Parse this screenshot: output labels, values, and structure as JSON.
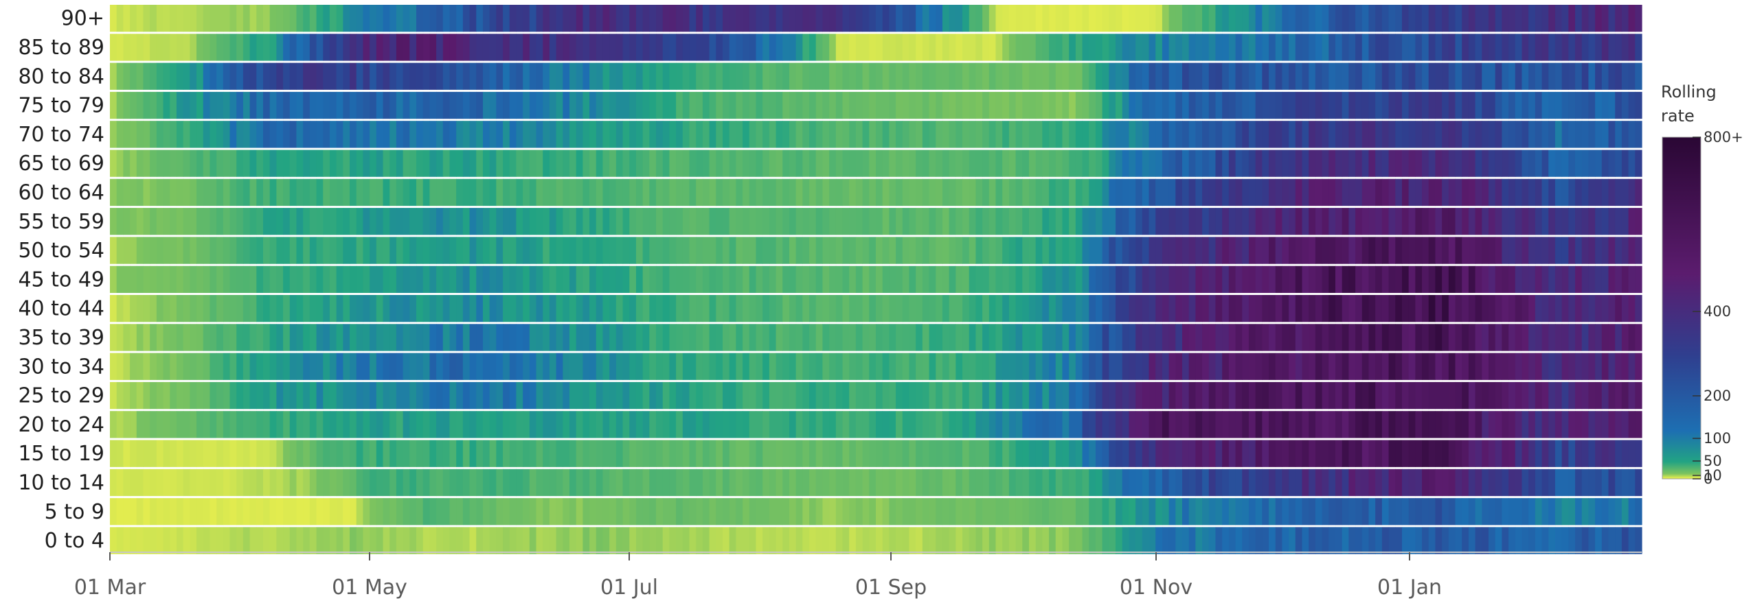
{
  "chart_data": {
    "type": "heatmap",
    "title": "",
    "xlabel": "",
    "ylabel": "",
    "rows": [
      "90+",
      "85 to 89",
      "80 to 84",
      "75 to 79",
      "70 to 74",
      "65 to 69",
      "60 to 64",
      "55 to 59",
      "50 to 54",
      "45 to 49",
      "40 to 44",
      "35 to 39",
      "30 to 34",
      "25 to 29",
      "20 to 24",
      "15 to 19",
      "10 to 14",
      "5 to 9",
      "0 to 4"
    ],
    "x_ticks": [
      "01 Mar",
      "01 May",
      "01 Jul",
      "01 Sep",
      "01 Nov",
      "01 Jan"
    ],
    "color_scale": {
      "title_lines": [
        "Rolling",
        "rate"
      ],
      "ticks": [
        "800+",
        "400",
        "200",
        "100",
        "50",
        "10",
        "0"
      ],
      "tick_values": [
        800,
        400,
        200,
        100,
        50,
        10,
        0
      ],
      "colors": [
        "#f4f34c",
        "#7cc35f",
        "#22a383",
        "#1d6fb2",
        "#2f3f8f",
        "#5b1c6e",
        "#2a0734"
      ]
    },
    "values_by_row": {
      "90+": [
        [
          0,
          3
        ],
        [
          10,
          5
        ],
        [
          40,
          8
        ],
        [
          70,
          95
        ],
        [
          90,
          160
        ],
        [
          120,
          300
        ],
        [
          180,
          250
        ],
        [
          220,
          2
        ],
        [
          260,
          2
        ],
        [
          300,
          130
        ],
        [
          320,
          190
        ],
        [
          360,
          300
        ],
        [
          420,
          380
        ],
        [
          450,
          320
        ]
      ],
      "85 to 89": [
        [
          0,
          3
        ],
        [
          20,
          5
        ],
        [
          40,
          60
        ],
        [
          70,
          380
        ],
        [
          110,
          300
        ],
        [
          150,
          200
        ],
        [
          180,
          3
        ],
        [
          220,
          3
        ],
        [
          250,
          70
        ],
        [
          300,
          120
        ],
        [
          330,
          200
        ],
        [
          360,
          250
        ],
        [
          400,
          280
        ],
        [
          450,
          220
        ]
      ],
      "80 to 84": [
        [
          0,
          3
        ],
        [
          20,
          60
        ],
        [
          50,
          250
        ],
        [
          90,
          140
        ],
        [
          140,
          40
        ],
        [
          180,
          20
        ],
        [
          210,
          20
        ],
        [
          240,
          15
        ],
        [
          260,
          150
        ],
        [
          300,
          150
        ],
        [
          330,
          180
        ],
        [
          360,
          150
        ],
        [
          400,
          220
        ],
        [
          450,
          150
        ]
      ],
      "75 to 79": [
        [
          0,
          3
        ],
        [
          20,
          60
        ],
        [
          40,
          120
        ],
        [
          90,
          120
        ],
        [
          140,
          40
        ],
        [
          180,
          20
        ],
        [
          210,
          15
        ],
        [
          240,
          10
        ],
        [
          260,
          110
        ],
        [
          300,
          200
        ],
        [
          330,
          220
        ],
        [
          360,
          110
        ],
        [
          400,
          200
        ],
        [
          450,
          130
        ]
      ],
      "70 to 74": [
        [
          0,
          5
        ],
        [
          20,
          40
        ],
        [
          40,
          120
        ],
        [
          90,
          90
        ],
        [
          140,
          50
        ],
        [
          180,
          30
        ],
        [
          210,
          30
        ],
        [
          240,
          40
        ],
        [
          260,
          110
        ],
        [
          300,
          250
        ],
        [
          330,
          250
        ],
        [
          360,
          110
        ],
        [
          400,
          220
        ],
        [
          450,
          150
        ]
      ],
      "65 to 69": [
        [
          0,
          5
        ],
        [
          20,
          25
        ],
        [
          40,
          50
        ],
        [
          90,
          50
        ],
        [
          140,
          30
        ],
        [
          180,
          25
        ],
        [
          210,
          25
        ],
        [
          240,
          30
        ],
        [
          260,
          110
        ],
        [
          300,
          300
        ],
        [
          330,
          300
        ],
        [
          360,
          120
        ],
        [
          400,
          300
        ],
        [
          450,
          220
        ]
      ],
      "60 to 64": [
        [
          0,
          8
        ],
        [
          20,
          15
        ],
        [
          40,
          40
        ],
        [
          90,
          40
        ],
        [
          140,
          25
        ],
        [
          180,
          20
        ],
        [
          210,
          20
        ],
        [
          240,
          40
        ],
        [
          260,
          150
        ],
        [
          300,
          350
        ],
        [
          330,
          400
        ],
        [
          360,
          160
        ],
        [
          400,
          400
        ],
        [
          450,
          300
        ]
      ],
      "55 to 59": [
        [
          0,
          10
        ],
        [
          20,
          15
        ],
        [
          40,
          50
        ],
        [
          90,
          70
        ],
        [
          140,
          30
        ],
        [
          180,
          25
        ],
        [
          210,
          25
        ],
        [
          240,
          50
        ],
        [
          260,
          200
        ],
        [
          300,
          400
        ],
        [
          330,
          450
        ],
        [
          360,
          220
        ],
        [
          400,
          450
        ],
        [
          450,
          300
        ]
      ],
      "50 to 54": [
        [
          0,
          5
        ],
        [
          20,
          15
        ],
        [
          40,
          40
        ],
        [
          90,
          60
        ],
        [
          140,
          30
        ],
        [
          180,
          25
        ],
        [
          210,
          25
        ],
        [
          240,
          60
        ],
        [
          260,
          250
        ],
        [
          300,
          500
        ],
        [
          330,
          520
        ],
        [
          360,
          250
        ],
        [
          400,
          500
        ],
        [
          450,
          350
        ]
      ],
      "45 to 49": [
        [
          0,
          8
        ],
        [
          20,
          15
        ],
        [
          40,
          40
        ],
        [
          90,
          70
        ],
        [
          140,
          35
        ],
        [
          180,
          25
        ],
        [
          210,
          30
        ],
        [
          240,
          70
        ],
        [
          260,
          260
        ],
        [
          300,
          550
        ],
        [
          330,
          600
        ],
        [
          360,
          280
        ],
        [
          400,
          550
        ],
        [
          450,
          380
        ]
      ],
      "40 to 44": [
        [
          0,
          3
        ],
        [
          20,
          15
        ],
        [
          40,
          40
        ],
        [
          90,
          80
        ],
        [
          140,
          40
        ],
        [
          180,
          25
        ],
        [
          210,
          35
        ],
        [
          240,
          80
        ],
        [
          260,
          300
        ],
        [
          300,
          560
        ],
        [
          330,
          620
        ],
        [
          360,
          300
        ],
        [
          400,
          560
        ],
        [
          450,
          400
        ]
      ],
      "35 to 39": [
        [
          0,
          3
        ],
        [
          20,
          15
        ],
        [
          40,
          50
        ],
        [
          90,
          100
        ],
        [
          140,
          40
        ],
        [
          180,
          30
        ],
        [
          210,
          40
        ],
        [
          240,
          80
        ],
        [
          260,
          300
        ],
        [
          300,
          520
        ],
        [
          330,
          560
        ],
        [
          360,
          280
        ],
        [
          400,
          520
        ],
        [
          450,
          380
        ]
      ],
      "30 to 34": [
        [
          0,
          3
        ],
        [
          20,
          15
        ],
        [
          40,
          60
        ],
        [
          90,
          120
        ],
        [
          140,
          45
        ],
        [
          180,
          35
        ],
        [
          210,
          40
        ],
        [
          240,
          90
        ],
        [
          260,
          330
        ],
        [
          300,
          500
        ],
        [
          330,
          540
        ],
        [
          360,
          290
        ],
        [
          400,
          520
        ],
        [
          450,
          400
        ]
      ],
      "25 to 29": [
        [
          0,
          3
        ],
        [
          20,
          15
        ],
        [
          40,
          60
        ],
        [
          90,
          100
        ],
        [
          140,
          50
        ],
        [
          180,
          40
        ],
        [
          210,
          40
        ],
        [
          240,
          100
        ],
        [
          260,
          400
        ],
        [
          300,
          520
        ],
        [
          330,
          550
        ],
        [
          360,
          300
        ],
        [
          400,
          560
        ],
        [
          450,
          420
        ]
      ],
      "20 to 24": [
        [
          0,
          5
        ],
        [
          20,
          20
        ],
        [
          40,
          40
        ],
        [
          90,
          60
        ],
        [
          140,
          50
        ],
        [
          180,
          40
        ],
        [
          210,
          45
        ],
        [
          240,
          120
        ],
        [
          260,
          500
        ],
        [
          300,
          520
        ],
        [
          330,
          520
        ],
        [
          360,
          300
        ],
        [
          400,
          540
        ],
        [
          450,
          420
        ]
      ],
      "15 to 19": [
        [
          0,
          3
        ],
        [
          40,
          3
        ],
        [
          60,
          40
        ],
        [
          90,
          40
        ],
        [
          140,
          25
        ],
        [
          180,
          20
        ],
        [
          210,
          25
        ],
        [
          240,
          60
        ],
        [
          260,
          330
        ],
        [
          300,
          520
        ],
        [
          330,
          560
        ],
        [
          360,
          200
        ],
        [
          400,
          450
        ],
        [
          450,
          330
        ]
      ],
      "10 to 14": [
        [
          0,
          3
        ],
        [
          30,
          3
        ],
        [
          50,
          8
        ],
        [
          70,
          40
        ],
        [
          140,
          25
        ],
        [
          180,
          15
        ],
        [
          210,
          20
        ],
        [
          240,
          40
        ],
        [
          260,
          130
        ],
        [
          300,
          300
        ],
        [
          330,
          400
        ],
        [
          360,
          130
        ],
        [
          400,
          260
        ],
        [
          450,
          180
        ]
      ],
      "5 to 9": [
        [
          0,
          2
        ],
        [
          60,
          2
        ],
        [
          80,
          30
        ],
        [
          110,
          8
        ],
        [
          140,
          20
        ],
        [
          180,
          8
        ],
        [
          210,
          15
        ],
        [
          240,
          20
        ],
        [
          260,
          80
        ],
        [
          300,
          120
        ],
        [
          330,
          150
        ],
        [
          360,
          80
        ],
        [
          400,
          120
        ],
        [
          450,
          80
        ]
      ],
      "0 to 4": [
        [
          0,
          2
        ],
        [
          60,
          8
        ],
        [
          90,
          5
        ],
        [
          120,
          10
        ],
        [
          160,
          5
        ],
        [
          200,
          5
        ],
        [
          240,
          10
        ],
        [
          260,
          90
        ],
        [
          300,
          130
        ],
        [
          330,
          140
        ],
        [
          360,
          130
        ],
        [
          400,
          180
        ],
        [
          450,
          100
        ]
      ]
    }
  }
}
